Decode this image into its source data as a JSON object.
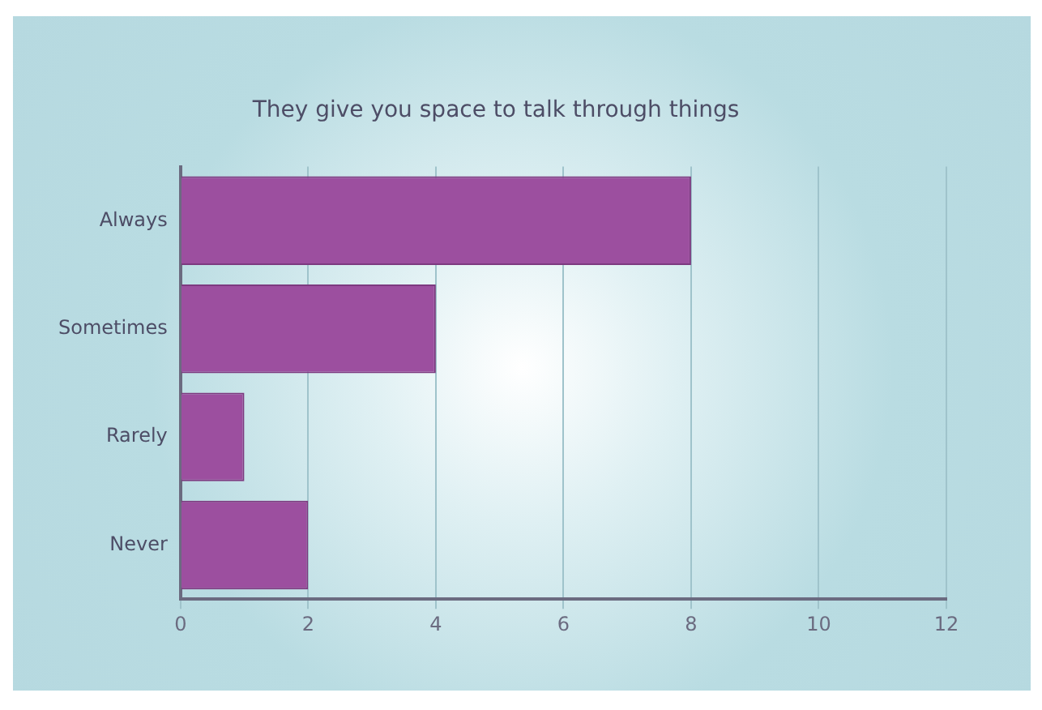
{
  "chart_data": {
    "type": "bar",
    "orientation": "horizontal",
    "title": "They give you space to talk through things",
    "categories": [
      "Always",
      "Sometimes",
      "Rarely",
      "Never"
    ],
    "values": [
      8,
      4,
      1,
      2
    ],
    "color": "#9c4f9f",
    "xlim": [
      0,
      12
    ],
    "xticks": [
      0,
      2,
      4,
      6,
      8,
      10,
      12
    ],
    "grid": "x"
  }
}
